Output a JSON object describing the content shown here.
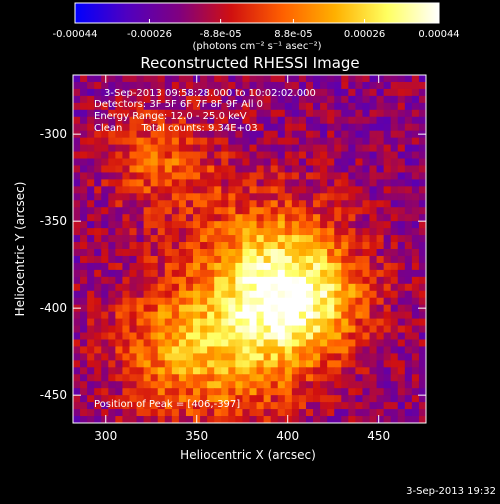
{
  "colorbar": {
    "ticks": [
      "-0.00044",
      "-0.00026",
      "-8.8e-05",
      "8.8e-05",
      "0.00026",
      "0.00044"
    ],
    "tick_values": [
      -0.00044,
      -0.00026,
      -8.8e-05,
      8.8e-05,
      0.00026,
      0.00044
    ],
    "range": [
      -0.00044,
      0.00044
    ],
    "units_label": "(photons cm⁻² s⁻¹ asec⁻²)",
    "colors": [
      "#0000ff",
      "#5000c0",
      "#800080",
      "#d01010",
      "#ff6000",
      "#ffb000",
      "#ffff60",
      "#ffffff"
    ]
  },
  "chart_data": {
    "type": "heatmap",
    "title": "Reconstructed RHESSI Image",
    "xlabel": "Heliocentric X (arcsec)",
    "ylabel": "Heliocentric Y (arcsec)",
    "xlim": [
      282,
      476
    ],
    "ylim": [
      -466,
      -266
    ],
    "x_ticks": [
      300,
      350,
      400,
      450
    ],
    "y_ticks": [
      -300,
      -350,
      -400,
      -450
    ],
    "annotations": [
      "3-Sep-2013 09:58:28.000 to 10:02:02.000",
      "Detectors: 3F 5F 6F 7F 8F 9F All 0",
      "Energy Range: 12.0 - 25.0 keV",
      "Clean      Total counts: 9.34E+03"
    ],
    "peak_label": "Position of Peak = [406,-397]",
    "peak": [
      406,
      -397
    ],
    "sources": [
      {
        "x": 405,
        "y": -396,
        "sigma": 26,
        "amp": 1.0
      },
      {
        "x": 385,
        "y": -372,
        "sigma": 32,
        "amp": 0.55
      },
      {
        "x": 365,
        "y": -430,
        "sigma": 30,
        "amp": 0.55
      },
      {
        "x": 330,
        "y": -315,
        "sigma": 22,
        "amp": 0.5
      },
      {
        "x": 330,
        "y": -420,
        "sigma": 24,
        "amp": 0.4
      }
    ],
    "background_level": -0.00018
  },
  "footer": {
    "timestamp": "3-Sep-2013 19:32"
  }
}
